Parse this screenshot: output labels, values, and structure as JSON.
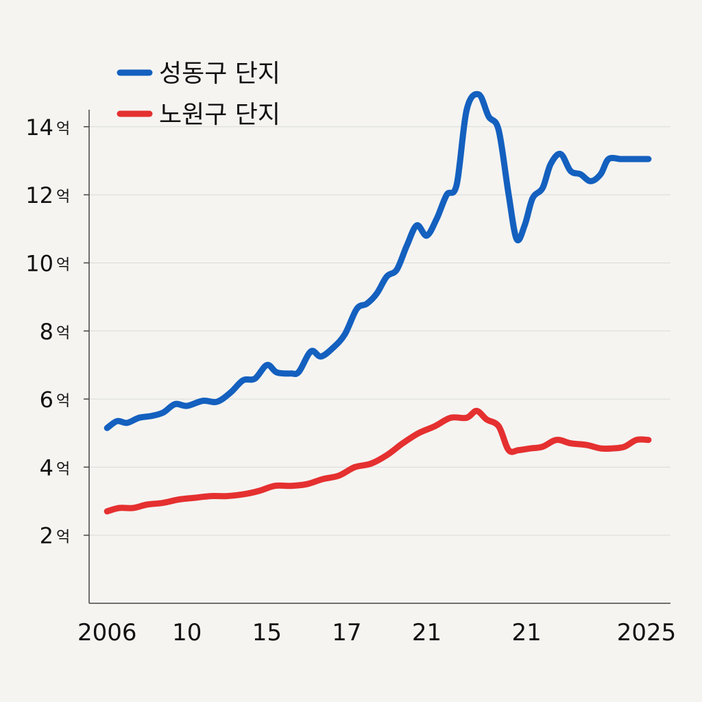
{
  "chart_data": {
    "type": "line",
    "title": "",
    "xlabel": "",
    "ylabel": "",
    "y_unit": "억",
    "ylim": [
      0,
      14.5
    ],
    "yticks": [
      2,
      4,
      6,
      8,
      10,
      12,
      14
    ],
    "x_tick_labels": [
      {
        "label": "2006",
        "x": 2006
      },
      {
        "label": "10",
        "x": 2010
      },
      {
        "label": "15",
        "x": 2014
      },
      {
        "label": "17",
        "x": 2018
      },
      {
        "label": "21",
        "x": 2022
      },
      {
        "label": "21",
        "x": 2027
      },
      {
        "label": "2025",
        "x": 2033
      }
    ],
    "xlim": [
      2005.1,
      2034.2
    ],
    "grid": true,
    "legend_position": "top-left",
    "series": [
      {
        "name": "성동구 단지",
        "color": "#1460bf",
        "x": [
          2006,
          2006.5,
          2007,
          2007.6,
          2008.2,
          2008.8,
          2009.4,
          2010,
          2010.8,
          2011.5,
          2012.2,
          2012.8,
          2013.4,
          2014,
          2014.5,
          2015.2,
          2015.6,
          2016.2,
          2016.7,
          2017.3,
          2017.9,
          2018.5,
          2019,
          2019.5,
          2020,
          2020.5,
          2021,
          2021.5,
          2022,
          2022.5,
          2023,
          2023.5,
          2024,
          2024.6,
          2025.1,
          2025.6,
          2026.1,
          2026.5,
          2026.9,
          2027.3,
          2027.8,
          2028.2,
          2028.7,
          2029.2,
          2029.7,
          2030.2,
          2030.7,
          2031.1,
          2031.7,
          2032.2,
          2032.7,
          2033.1
        ],
        "values": [
          5.15,
          5.35,
          5.3,
          5.45,
          5.5,
          5.6,
          5.85,
          5.8,
          5.95,
          5.92,
          6.2,
          6.55,
          6.6,
          7.0,
          6.78,
          6.75,
          6.8,
          7.4,
          7.25,
          7.5,
          7.9,
          8.65,
          8.8,
          9.1,
          9.6,
          9.8,
          10.5,
          11.1,
          10.8,
          11.3,
          12.0,
          12.3,
          14.5,
          14.95,
          14.3,
          13.9,
          12.0,
          10.7,
          11.1,
          11.9,
          12.2,
          12.9,
          13.2,
          12.7,
          12.6,
          12.4,
          12.6,
          13.05,
          13.05,
          13.05,
          13.05,
          13.05
        ]
      },
      {
        "name": "노원구 단지",
        "color": "#e53030",
        "x": [
          2006,
          2006.6,
          2007.3,
          2008,
          2008.8,
          2009.6,
          2010.4,
          2011.2,
          2012,
          2012.8,
          2013.6,
          2014.4,
          2015.2,
          2016,
          2016.8,
          2017.6,
          2018.4,
          2019.2,
          2020,
          2020.8,
          2021.6,
          2022.4,
          2023.2,
          2024,
          2024.5,
          2025,
          2025.6,
          2026.1,
          2026.6,
          2027.2,
          2027.8,
          2028.5,
          2029.2,
          2030,
          2030.7,
          2031.3,
          2031.9,
          2032.5,
          2033.1
        ],
        "values": [
          2.7,
          2.8,
          2.8,
          2.9,
          2.95,
          3.05,
          3.1,
          3.15,
          3.15,
          3.2,
          3.3,
          3.45,
          3.45,
          3.5,
          3.65,
          3.75,
          4.0,
          4.1,
          4.35,
          4.7,
          5.0,
          5.2,
          5.45,
          5.45,
          5.65,
          5.4,
          5.2,
          4.5,
          4.5,
          4.55,
          4.6,
          4.8,
          4.7,
          4.65,
          4.55,
          4.55,
          4.6,
          4.8,
          4.8
        ]
      }
    ]
  }
}
